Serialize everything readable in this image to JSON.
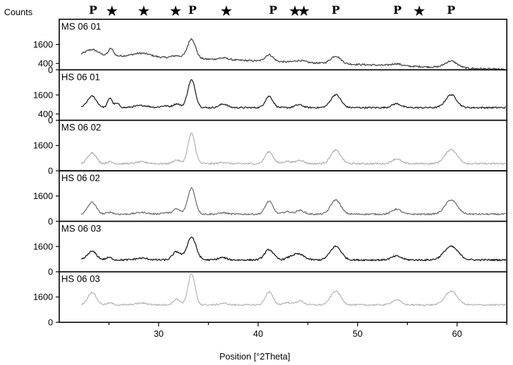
{
  "chart_data": {
    "type": "line",
    "title": "",
    "ylabel": "Counts",
    "xlabel": "Position [°2Theta]",
    "xlim": [
      20,
      65
    ],
    "x_ticks": [
      30,
      40,
      50,
      60
    ],
    "y_tick_labels": {
      "MS 06 01": [
        "0",
        "400",
        "1600"
      ],
      "HS 06 01": [
        "0",
        "400",
        "1600"
      ],
      "MS 06 02": [
        "0",
        "1600"
      ],
      "HS 06 02": [
        "0",
        "1600"
      ],
      "MS 06 03": [
        "0",
        "1600"
      ],
      "HS 06 03": [
        "0",
        "1600"
      ]
    },
    "phase_markers": [
      {
        "symbol": "P",
        "x": 23.4
      },
      {
        "symbol": "★",
        "x": 25.3
      },
      {
        "symbol": "★",
        "x": 28.5
      },
      {
        "symbol": "★",
        "x": 31.7
      },
      {
        "symbol": "P",
        "x": 33.4
      },
      {
        "symbol": "★",
        "x": 36.8
      },
      {
        "symbol": "P",
        "x": 41.5
      },
      {
        "symbol": "★",
        "x": 43.7
      },
      {
        "symbol": "★",
        "x": 44.6
      },
      {
        "symbol": "P",
        "x": 47.8
      },
      {
        "symbol": "P",
        "x": 54.0
      },
      {
        "symbol": "★",
        "x": 56.2
      },
      {
        "symbol": "P",
        "x": 59.4
      }
    ],
    "series": [
      {
        "name": "MS 06 01",
        "color": "#444444",
        "baseline_counts": 1000,
        "slope": -2.2,
        "noise": 55,
        "peaks": [
          [
            23.3,
            350,
            0.6
          ],
          [
            25.2,
            450,
            0.25
          ],
          [
            28.3,
            230,
            0.9
          ],
          [
            31.8,
            150,
            0.5
          ],
          [
            33.3,
            1250,
            0.4
          ],
          [
            36.5,
            110,
            0.5
          ],
          [
            41.1,
            420,
            0.4
          ],
          [
            44.2,
            120,
            0.5
          ],
          [
            47.8,
            480,
            0.5
          ],
          [
            53.9,
            130,
            0.5
          ],
          [
            59.4,
            420,
            0.6
          ]
        ]
      },
      {
        "name": "HS 06 01",
        "color": "#222222",
        "baseline_counts": 800,
        "slope": 0,
        "noise": 50,
        "peaks": [
          [
            23.3,
            720,
            0.45
          ],
          [
            25.1,
            620,
            0.22
          ],
          [
            25.8,
            260,
            0.25
          ],
          [
            28.3,
            130,
            0.7
          ],
          [
            30.6,
            110,
            0.4
          ],
          [
            31.8,
            240,
            0.35
          ],
          [
            33.3,
            1750,
            0.38
          ],
          [
            36.5,
            230,
            0.4
          ],
          [
            41.1,
            720,
            0.38
          ],
          [
            44.1,
            180,
            0.4
          ],
          [
            47.8,
            820,
            0.5
          ],
          [
            53.9,
            250,
            0.45
          ],
          [
            59.4,
            820,
            0.55
          ]
        ]
      },
      {
        "name": "MS 06 02",
        "color": "#b4b4b4",
        "baseline_counts": 450,
        "slope": 0,
        "noise": 55,
        "peaks": [
          [
            23.3,
            700,
            0.42
          ],
          [
            25.1,
            120,
            0.3
          ],
          [
            28.3,
            100,
            0.6
          ],
          [
            31.8,
            230,
            0.35
          ],
          [
            33.3,
            1900,
            0.36
          ],
          [
            36.5,
            90,
            0.4
          ],
          [
            41.1,
            750,
            0.4
          ],
          [
            42.9,
            150,
            0.4
          ],
          [
            44.2,
            220,
            0.4
          ],
          [
            47.8,
            850,
            0.5
          ],
          [
            53.9,
            300,
            0.45
          ],
          [
            59.4,
            900,
            0.6
          ]
        ]
      },
      {
        "name": "HS 06 02",
        "color": "#707070",
        "baseline_counts": 450,
        "slope": 0,
        "noise": 50,
        "peaks": [
          [
            23.3,
            750,
            0.42
          ],
          [
            25.1,
            130,
            0.3
          ],
          [
            28.3,
            110,
            0.6
          ],
          [
            30.6,
            90,
            0.4
          ],
          [
            31.8,
            330,
            0.35
          ],
          [
            33.3,
            1650,
            0.38
          ],
          [
            36.5,
            90,
            0.4
          ],
          [
            41.1,
            820,
            0.38
          ],
          [
            42.9,
            160,
            0.4
          ],
          [
            44.2,
            240,
            0.4
          ],
          [
            47.8,
            900,
            0.5
          ],
          [
            53.9,
            320,
            0.45
          ],
          [
            59.4,
            900,
            0.6
          ]
        ]
      },
      {
        "name": "MS 06 03",
        "color": "#1a1a1a",
        "baseline_counts": 750,
        "slope": 0,
        "noise": 55,
        "peaks": [
          [
            23.3,
            540,
            0.45
          ],
          [
            25.0,
            150,
            0.3
          ],
          [
            28.3,
            110,
            0.6
          ],
          [
            31.8,
            520,
            0.4
          ],
          [
            33.3,
            1450,
            0.45
          ],
          [
            36.4,
            150,
            0.4
          ],
          [
            41.1,
            650,
            0.45
          ],
          [
            43.4,
            200,
            0.5
          ],
          [
            44.2,
            300,
            0.5
          ],
          [
            47.8,
            860,
            0.55
          ],
          [
            53.9,
            240,
            0.5
          ],
          [
            59.4,
            850,
            0.7
          ]
        ]
      },
      {
        "name": "HS 06 03",
        "color": "#b8b8b8",
        "baseline_counts": 1100,
        "slope": 0,
        "noise": 50,
        "peaks": [
          [
            23.3,
            800,
            0.42
          ],
          [
            25.1,
            120,
            0.3
          ],
          [
            28.3,
            110,
            0.6
          ],
          [
            31.8,
            370,
            0.35
          ],
          [
            33.3,
            1950,
            0.35
          ],
          [
            36.5,
            100,
            0.4
          ],
          [
            41.1,
            820,
            0.38
          ],
          [
            42.9,
            150,
            0.4
          ],
          [
            44.2,
            250,
            0.4
          ],
          [
            47.8,
            880,
            0.5
          ],
          [
            53.9,
            320,
            0.45
          ],
          [
            59.4,
            880,
            0.6
          ]
        ]
      }
    ]
  }
}
